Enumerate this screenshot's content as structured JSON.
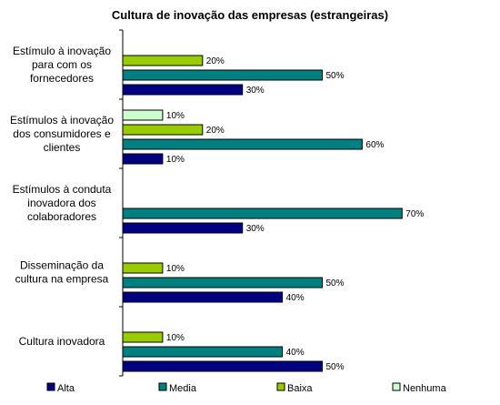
{
  "chart_data": {
    "type": "bar",
    "orientation": "horizontal",
    "title": "Cultura de inovação das empresas (estrangeiras)",
    "xlabel": "",
    "ylabel": "",
    "xlim": [
      0,
      100
    ],
    "grid": false,
    "legend_position": "bottom",
    "value_suffix": "%",
    "categories": [
      [
        "Estímulo à inovação",
        "para com os",
        "fornecedores"
      ],
      [
        "Estímulos à inovação",
        "dos consumidores e",
        "clientes"
      ],
      [
        "Estímulos à conduta",
        "inovadora dos",
        "colaboradores"
      ],
      [
        "Disseminação da",
        "cultura na empresa"
      ],
      [
        "Cultura inovadora"
      ]
    ],
    "series": [
      {
        "name": "Alta",
        "color": "#000080",
        "values": [
          30,
          10,
          30,
          40,
          50
        ]
      },
      {
        "name": "Media",
        "color": "#008080",
        "values": [
          50,
          60,
          70,
          50,
          40
        ]
      },
      {
        "name": "Baixa",
        "color": "#99CC00",
        "values": [
          20,
          20,
          null,
          10,
          10
        ]
      },
      {
        "name": "Nenhuma",
        "color": "#CCFFCC",
        "values": [
          null,
          10,
          null,
          null,
          null
        ]
      }
    ]
  }
}
